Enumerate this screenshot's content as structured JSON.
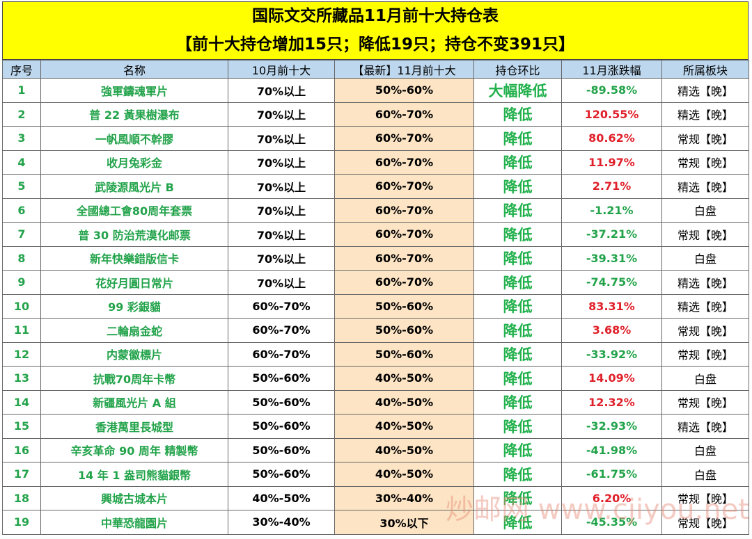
{
  "header": {
    "title": "国际文交所藏品11月前十大持仓表",
    "subtitle": "【前十大持仓增加15只；降低19只；持仓不变391只】"
  },
  "table": {
    "columns": [
      "序号",
      "名称",
      "10月前十大",
      "【最新】11月前十大",
      "持仓环比",
      "11月涨跌幅",
      "所属板块"
    ],
    "rows": [
      [
        "1",
        "強軍鑄魂軍片",
        "70%以上",
        "50%-60%",
        "大幅降低",
        "-89.58%",
        "精选【晚】"
      ],
      [
        "2",
        "普 22 黃果樹瀑布",
        "70%以上",
        "60%-70%",
        "降低",
        "120.55%",
        "精选【晚】"
      ],
      [
        "3",
        "一帆風順不幹膠",
        "70%以上",
        "60%-70%",
        "降低",
        "80.62%",
        "常规【晚】"
      ],
      [
        "4",
        "收月兔彩金",
        "70%以上",
        "60%-70%",
        "降低",
        "11.97%",
        "常规【晚】"
      ],
      [
        "5",
        "武陵源風光片 B",
        "70%以上",
        "60%-70%",
        "降低",
        "2.71%",
        "精选【晚】"
      ],
      [
        "6",
        "全國總工會80周年套票",
        "70%以上",
        "60%-70%",
        "降低",
        "-1.21%",
        "白盘"
      ],
      [
        "7",
        "普 30 防治荒漠化邮票",
        "70%以上",
        "60%-70%",
        "降低",
        "-37.21%",
        "常规【晚】"
      ],
      [
        "8",
        "新年快樂錯版信卡",
        "70%以上",
        "60%-70%",
        "降低",
        "-39.31%",
        "白盘"
      ],
      [
        "9",
        "花好月圓日常片",
        "70%以上",
        "60%-70%",
        "降低",
        "-74.75%",
        "精选【晚】"
      ],
      [
        "10",
        "99 彩銀貓",
        "60%-70%",
        "50%-60%",
        "降低",
        "83.31%",
        "精选【晚】"
      ],
      [
        "11",
        "二輪扇金蛇",
        "60%-70%",
        "50%-60%",
        "降低",
        "3.68%",
        "常规【晚】"
      ],
      [
        "12",
        "内蒙徽標片",
        "60%-70%",
        "50%-60%",
        "降低",
        "-33.92%",
        "常规【晚】"
      ],
      [
        "13",
        "抗戰70周年卡幣",
        "50%-60%",
        "40%-50%",
        "降低",
        "14.09%",
        "白盘"
      ],
      [
        "14",
        "新疆風光片 A 組",
        "50%-60%",
        "40%-50%",
        "降低",
        "12.32%",
        "常规【晚】"
      ],
      [
        "15",
        "香港萬里長城型",
        "50%-60%",
        "40%-50%",
        "降低",
        "-32.93%",
        "精选【晚】"
      ],
      [
        "16",
        "辛亥革命 90 周年 精製幣",
        "50%-60%",
        "40%-50%",
        "降低",
        "-41.98%",
        "白盘"
      ],
      [
        "17",
        "14 年 1 盎司熊貓銀幣",
        "50%-60%",
        "40%-50%",
        "降低",
        "-61.75%",
        "白盘"
      ],
      [
        "18",
        "興城古城本片",
        "40%-50%",
        "30%-40%",
        "降低",
        "6.20%",
        "常规【晚】"
      ],
      [
        "19",
        "中華恐龍園片",
        "30%-40%",
        "30%以下",
        "降低",
        "-45.35%",
        "常规【晚】"
      ]
    ]
  },
  "watermark": "炒邮网 www.cjiyou.net"
}
